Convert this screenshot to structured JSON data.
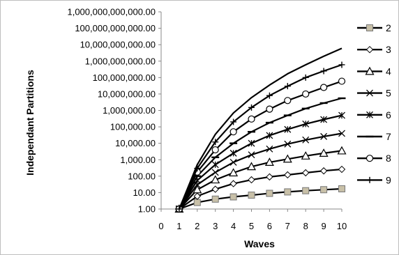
{
  "chart_data": {
    "type": "line",
    "title": "",
    "xlabel": "Waves",
    "ylabel": "Independant Partitions",
    "y_scale": "log",
    "ylim": [
      1,
      1000000000000
    ],
    "xlim": [
      0,
      10
    ],
    "x_ticks": [
      "0",
      "1",
      "2",
      "3",
      "4",
      "5",
      "6",
      "7",
      "8",
      "9",
      "10"
    ],
    "y_ticks": [
      "1.00",
      "10.00",
      "100.00",
      "1,000.00",
      "10,000.00",
      "100,000.00",
      "1,000,000.00",
      "10,000,000.00",
      "100,000,000.00",
      "1,000,000,000.00",
      "10,000,000,000.00",
      "100,000,000,000.00",
      "1,000,000,000,000.00"
    ],
    "grid": false,
    "legend_position": "right",
    "x": [
      1,
      2,
      3,
      4,
      5,
      6,
      7,
      8,
      9,
      10
    ],
    "series": [
      {
        "name": "2",
        "marker": "square",
        "values": [
          1,
          2.5,
          4,
          5.5,
          7,
          9,
          11,
          13,
          15,
          17
        ]
      },
      {
        "name": "3",
        "marker": "diamond",
        "values": [
          1,
          6,
          16,
          35,
          60,
          90,
          120,
          160,
          210,
          260
        ]
      },
      {
        "name": "4",
        "marker": "triangle",
        "values": [
          1,
          15,
          60,
          160,
          380,
          700,
          1100,
          1700,
          2500,
          3500
        ]
      },
      {
        "name": "5",
        "marker": "x",
        "values": [
          1,
          30,
          170,
          700,
          2000,
          4500,
          9000,
          16000,
          26000,
          40000
        ]
      },
      {
        "name": "6",
        "marker": "asterisk",
        "values": [
          1,
          55,
          500,
          2500,
          10000,
          30000,
          70000,
          150000,
          280000,
          500000
        ]
      },
      {
        "name": "7",
        "marker": "dash",
        "values": [
          1,
          100,
          1400,
          10000,
          50000,
          180000,
          500000,
          1300000,
          2800000,
          5500000
        ]
      },
      {
        "name": "8",
        "marker": "circle",
        "values": [
          1,
          180,
          4000,
          50000,
          300000,
          1200000,
          4000000,
          10000000,
          25000000,
          60000000
        ]
      },
      {
        "name": "9",
        "marker": "plus",
        "values": [
          1,
          300,
          12000,
          200000,
          1500000,
          8000000,
          30000000,
          100000000,
          250000000,
          600000000
        ]
      },
      {
        "name": "",
        "marker": "none",
        "values": [
          1,
          500,
          35000,
          700000,
          6000000,
          35000000,
          170000000,
          600000000,
          2000000000,
          6000000000
        ]
      }
    ],
    "colors": {
      "line": "#000000",
      "square_fill": "#c8c0a8"
    }
  }
}
